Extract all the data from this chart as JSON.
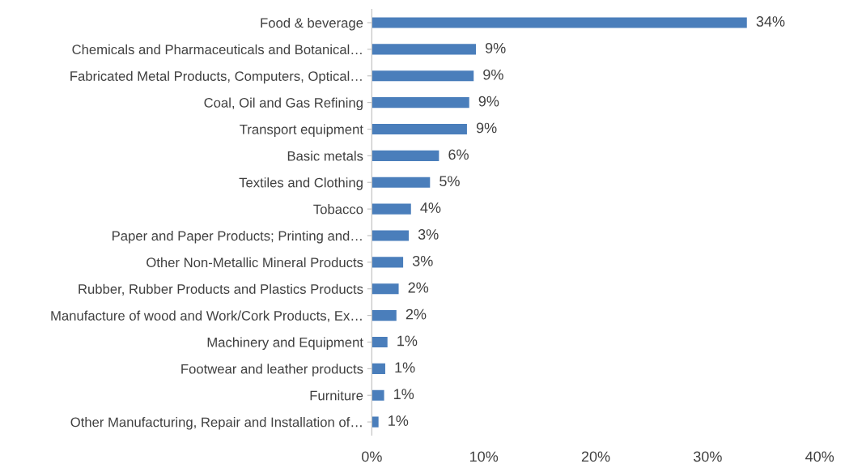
{
  "chart_data": {
    "type": "bar",
    "orientation": "horizontal",
    "categories": [
      "Food & beverage",
      "Chemicals and Pharmaceuticals and Botanical…",
      "Fabricated Metal Products, Computers, Optical…",
      "Coal, Oil and Gas Refining",
      "Transport equipment",
      "Basic metals",
      "Textiles and Clothing",
      "Tobacco",
      "Paper and Paper Products; Printing and…",
      "Other Non-Metallic Mineral Products",
      "Rubber, Rubber Products and Plastics Products",
      "Manufacture of wood and Work/Cork Products, Ex…",
      "Machinery and Equipment",
      "Footwear and leather products",
      "Furniture",
      "Other Manufacturing, Repair and Installation of…"
    ],
    "values": [
      33.5,
      9.3,
      9.1,
      8.7,
      8.5,
      6.0,
      5.2,
      3.5,
      3.3,
      2.8,
      2.4,
      2.2,
      1.4,
      1.2,
      1.1,
      0.6
    ],
    "value_labels": [
      "34%",
      "9%",
      "9%",
      "9%",
      "9%",
      "6%",
      "5%",
      "4%",
      "3%",
      "3%",
      "2%",
      "2%",
      "1%",
      "1%",
      "1%",
      "1%"
    ],
    "color": "#4a7ebb",
    "xlim": [
      0,
      40
    ],
    "xticks": [
      {
        "value": 0,
        "label": "0%"
      },
      {
        "value": 10,
        "label": "10%"
      },
      {
        "value": 20,
        "label": "20%"
      },
      {
        "value": 30,
        "label": "30%"
      },
      {
        "value": 40,
        "label": "40%"
      }
    ],
    "grid": false,
    "legend": false
  }
}
